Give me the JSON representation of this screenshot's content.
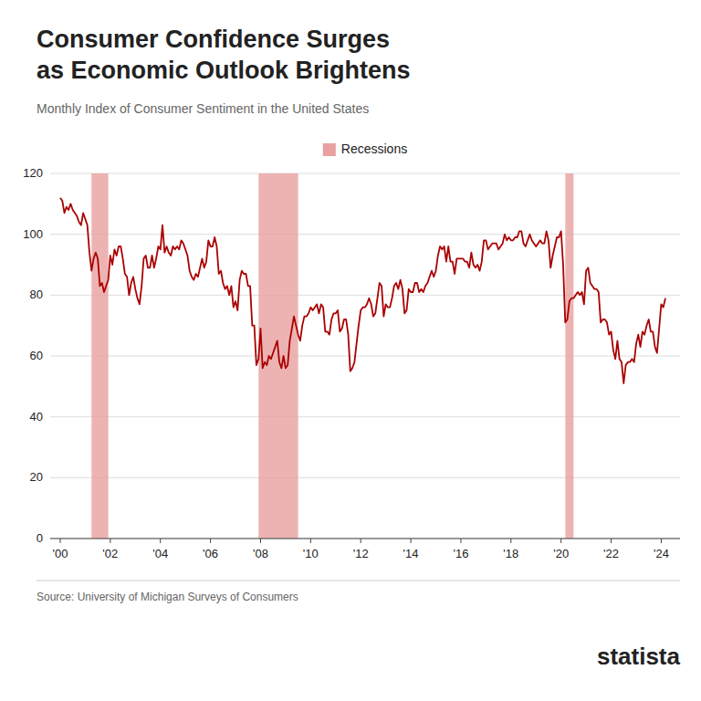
{
  "chart_data": {
    "type": "line",
    "title": [
      "Consumer Confidence Surges",
      "as Economic Outlook Brightens"
    ],
    "subtitle": "Monthly Index of Consumer Sentiment in the United States",
    "annotations": [
      "Source: University of Michigan Surveys of Consumers",
      "statista"
    ],
    "color": "#aa0000",
    "x": [
      2000.0,
      2000.083,
      2000.167,
      2000.25,
      2000.333,
      2000.417,
      2000.5,
      2000.583,
      2000.667,
      2000.75,
      2000.833,
      2000.917,
      2001.0,
      2001.083,
      2001.167,
      2001.25,
      2001.333,
      2001.417,
      2001.5,
      2001.583,
      2001.667,
      2001.75,
      2001.833,
      2001.917,
      2002.0,
      2002.083,
      2002.167,
      2002.25,
      2002.333,
      2002.417,
      2002.5,
      2002.583,
      2002.667,
      2002.75,
      2002.833,
      2002.917,
      2003.0,
      2003.083,
      2003.167,
      2003.25,
      2003.333,
      2003.417,
      2003.5,
      2003.583,
      2003.667,
      2003.75,
      2003.833,
      2003.917,
      2004.0,
      2004.083,
      2004.167,
      2004.25,
      2004.333,
      2004.417,
      2004.5,
      2004.583,
      2004.667,
      2004.75,
      2004.833,
      2004.917,
      2005.0,
      2005.083,
      2005.167,
      2005.25,
      2005.333,
      2005.417,
      2005.5,
      2005.583,
      2005.667,
      2005.75,
      2005.833,
      2005.917,
      2006.0,
      2006.083,
      2006.167,
      2006.25,
      2006.333,
      2006.417,
      2006.5,
      2006.583,
      2006.667,
      2006.75,
      2006.833,
      2006.917,
      2007.0,
      2007.083,
      2007.167,
      2007.25,
      2007.333,
      2007.417,
      2007.5,
      2007.583,
      2007.667,
      2007.75,
      2007.833,
      2007.917,
      2008.0,
      2008.083,
      2008.167,
      2008.25,
      2008.333,
      2008.417,
      2008.5,
      2008.583,
      2008.667,
      2008.75,
      2008.833,
      2008.917,
      2009.0,
      2009.083,
      2009.167,
      2009.25,
      2009.333,
      2009.417,
      2009.5,
      2009.583,
      2009.667,
      2009.75,
      2009.833,
      2009.917,
      2010.0,
      2010.083,
      2010.167,
      2010.25,
      2010.333,
      2010.417,
      2010.5,
      2010.583,
      2010.667,
      2010.75,
      2010.833,
      2010.917,
      2011.0,
      2011.083,
      2011.167,
      2011.25,
      2011.333,
      2011.417,
      2011.5,
      2011.583,
      2011.667,
      2011.75,
      2011.833,
      2011.917,
      2012.0,
      2012.083,
      2012.167,
      2012.25,
      2012.333,
      2012.417,
      2012.5,
      2012.583,
      2012.667,
      2012.75,
      2012.833,
      2012.917,
      2013.0,
      2013.083,
      2013.167,
      2013.25,
      2013.333,
      2013.417,
      2013.5,
      2013.583,
      2013.667,
      2013.75,
      2013.833,
      2013.917,
      2014.0,
      2014.083,
      2014.167,
      2014.25,
      2014.333,
      2014.417,
      2014.5,
      2014.583,
      2014.667,
      2014.75,
      2014.833,
      2014.917,
      2015.0,
      2015.083,
      2015.167,
      2015.25,
      2015.333,
      2015.417,
      2015.5,
      2015.583,
      2015.667,
      2015.75,
      2015.833,
      2015.917,
      2016.0,
      2016.083,
      2016.167,
      2016.25,
      2016.333,
      2016.417,
      2016.5,
      2016.583,
      2016.667,
      2016.75,
      2016.833,
      2016.917,
      2017.0,
      2017.083,
      2017.167,
      2017.25,
      2017.333,
      2017.417,
      2017.5,
      2017.583,
      2017.667,
      2017.75,
      2017.833,
      2017.917,
      2018.0,
      2018.083,
      2018.167,
      2018.25,
      2018.333,
      2018.417,
      2018.5,
      2018.583,
      2018.667,
      2018.75,
      2018.833,
      2018.917,
      2019.0,
      2019.083,
      2019.167,
      2019.25,
      2019.333,
      2019.417,
      2019.5,
      2019.583,
      2019.667,
      2019.75,
      2019.833,
      2019.917,
      2020.0,
      2020.083,
      2020.167,
      2020.25,
      2020.333,
      2020.417,
      2020.5,
      2020.583,
      2020.667,
      2020.75,
      2020.833,
      2020.917,
      2021.0,
      2021.083,
      2021.167,
      2021.25,
      2021.333,
      2021.417,
      2021.5,
      2021.583,
      2021.667,
      2021.75,
      2021.833,
      2021.917,
      2022.0,
      2022.083,
      2022.167,
      2022.25,
      2022.333,
      2022.417,
      2022.5,
      2022.583,
      2022.667,
      2022.75,
      2022.833,
      2022.917,
      2023.0,
      2023.083,
      2023.167,
      2023.25,
      2023.333,
      2023.417,
      2023.5,
      2023.583,
      2023.667,
      2023.75,
      2023.833,
      2023.917,
      2024.0,
      2024.083,
      2024.167
    ],
    "values": [
      112,
      111,
      107,
      109,
      108,
      110,
      108,
      107,
      106,
      104,
      103,
      107,
      105,
      103,
      94,
      88,
      92,
      94,
      92,
      83,
      84,
      81,
      83,
      85,
      93,
      90,
      95,
      93,
      96,
      96,
      92,
      87,
      86,
      80,
      84,
      86,
      82,
      79,
      77,
      83,
      92,
      93,
      89,
      89,
      93,
      89,
      92,
      96,
      95,
      103,
      94,
      96,
      94,
      93,
      96,
      95,
      96,
      95,
      98,
      97,
      95,
      93,
      88,
      86,
      85,
      87,
      86,
      89,
      92,
      89,
      91,
      98,
      96,
      96,
      99,
      96,
      87,
      88,
      84,
      82,
      83,
      80,
      83,
      76,
      78,
      75,
      85,
      88,
      87,
      87,
      83,
      83,
      70,
      70,
      57,
      59,
      69,
      56,
      58,
      57,
      60,
      59,
      61,
      63,
      65,
      58,
      56,
      60,
      56,
      57,
      65,
      69,
      73,
      70,
      67,
      65,
      70,
      73,
      73,
      74,
      76,
      75,
      76,
      77,
      74,
      77,
      76,
      68,
      68,
      67,
      72,
      74,
      74,
      75,
      68,
      69,
      72,
      72,
      67,
      55,
      56,
      58,
      64,
      70,
      75,
      76,
      76,
      77,
      79,
      77,
      73,
      74,
      79,
      84,
      83,
      73,
      77,
      76,
      76,
      79,
      83,
      84,
      82,
      85,
      82,
      74,
      75,
      82,
      81,
      81,
      84,
      84,
      81,
      82,
      81,
      83,
      84,
      86,
      88,
      86,
      88,
      93,
      96,
      95,
      96,
      91,
      96,
      91,
      91,
      87,
      92,
      92,
      92,
      92,
      91,
      91,
      89,
      94,
      90,
      89,
      90,
      88,
      91,
      98,
      98,
      95,
      96,
      97,
      97,
      97,
      95,
      96,
      97,
      100,
      98,
      99,
      98,
      98,
      99,
      99,
      101,
      101,
      97,
      96,
      98,
      100,
      98,
      97,
      96,
      97,
      98,
      97,
      97,
      101,
      98,
      89,
      93,
      96,
      99,
      99,
      101,
      90,
      71,
      72,
      78,
      79,
      79,
      80,
      81,
      80,
      81,
      77,
      88,
      89,
      84,
      83,
      82,
      82,
      81,
      71,
      72,
      72,
      71,
      67,
      68,
      62,
      59,
      65,
      59,
      58,
      51,
      57,
      58,
      58,
      59,
      58,
      64,
      67,
      63,
      68,
      67,
      70,
      72,
      68,
      68,
      63,
      61,
      69,
      77,
      76,
      79
    ],
    "recessions": {
      "name": "Recessions",
      "color": "#e8a0a0",
      "periods": [
        [
          2001.25,
          2001.92
        ],
        [
          2007.92,
          2009.5
        ],
        [
          2020.17,
          2020.5
        ]
      ]
    },
    "xlim": [
      1999.6,
      2024.75
    ],
    "xticks": [
      {
        "value": 2000,
        "label": "'00"
      },
      {
        "value": 2002,
        "label": "'02"
      },
      {
        "value": 2004,
        "label": "'04"
      },
      {
        "value": 2006,
        "label": "'06"
      },
      {
        "value": 2008,
        "label": "'08"
      },
      {
        "value": 2010,
        "label": "'10"
      },
      {
        "value": 2012,
        "label": "'12"
      },
      {
        "value": 2014,
        "label": "'14"
      },
      {
        "value": 2016,
        "label": "'16"
      },
      {
        "value": 2018,
        "label": "'18"
      },
      {
        "value": 2020,
        "label": "'20"
      },
      {
        "value": 2022,
        "label": "'22"
      },
      {
        "value": 2024,
        "label": "'24"
      }
    ],
    "ylim": [
      0,
      120
    ],
    "yticks": [
      0,
      20,
      40,
      60,
      80,
      100,
      120
    ],
    "grid": true,
    "legend": "top"
  }
}
